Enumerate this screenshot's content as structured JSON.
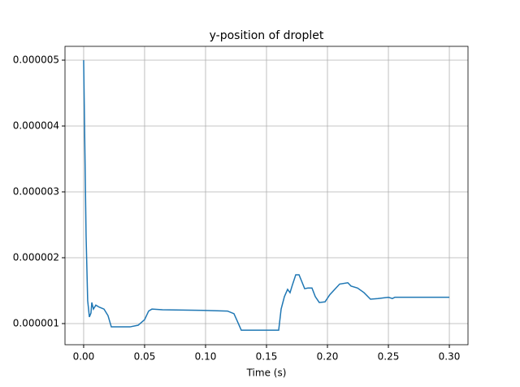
{
  "chart_data": {
    "type": "line",
    "title": "y-position of droplet",
    "xlabel": "Time (s)",
    "x": [
      0,
      0.0007,
      0.002,
      0.0033,
      0.0047,
      0.006,
      0.0067,
      0.008,
      0.01,
      0.0127,
      0.0167,
      0.02,
      0.0227,
      0.026,
      0.038,
      0.0447,
      0.05,
      0.0533,
      0.056,
      0.0647,
      0.098,
      0.118,
      0.1233,
      0.126,
      0.1293,
      0.138,
      0.16,
      0.162,
      0.1647,
      0.1673,
      0.1693,
      0.1713,
      0.174,
      0.1767,
      0.1787,
      0.1813,
      0.184,
      0.1873,
      0.19,
      0.1933,
      0.198,
      0.202,
      0.206,
      0.21,
      0.2167,
      0.2193,
      0.2247,
      0.23,
      0.2353,
      0.2413,
      0.25,
      0.2533,
      0.2553,
      0.3
    ],
    "series": [
      {
        "name": "y",
        "color": "#1f77b4",
        "values": [
          5e-06,
          4.06e-06,
          2.33e-06,
          1.35e-06,
          1.1e-06,
          1.16e-06,
          1.32e-06,
          1.22e-06,
          1.28e-06,
          1.25e-06,
          1.22e-06,
          1.12e-06,
          9.5e-07,
          9.5e-07,
          9.5e-07,
          9.75e-07,
          1.06e-06,
          1.19e-06,
          1.22e-06,
          1.21e-06,
          1.2e-06,
          1.19e-06,
          1.15e-06,
          1.04e-06,
          9e-07,
          9e-07,
          9e-07,
          1.22e-06,
          1.41e-06,
          1.52e-06,
          1.47e-06,
          1.59e-06,
          1.74e-06,
          1.74e-06,
          1.65e-06,
          1.53e-06,
          1.54e-06,
          1.54e-06,
          1.41e-06,
          1.32e-06,
          1.33e-06,
          1.44e-06,
          1.52e-06,
          1.6e-06,
          1.62e-06,
          1.57e-06,
          1.54e-06,
          1.47e-06,
          1.37e-06,
          1.38e-06,
          1.4e-06,
          1.38e-06,
          1.4e-06,
          1.4e-06
        ]
      }
    ],
    "xlim": [
      -0.0153,
      0.3153
    ],
    "xticks": [
      {
        "value": 0,
        "label": "0.00"
      },
      {
        "value": 0.05,
        "label": "0.05"
      },
      {
        "value": 0.1,
        "label": "0.10"
      },
      {
        "value": 0.15,
        "label": "0.15"
      },
      {
        "value": 0.2,
        "label": "0.20"
      },
      {
        "value": 0.25,
        "label": "0.25"
      },
      {
        "value": 0.3,
        "label": "0.30"
      }
    ],
    "ylim": [
      6.79e-07,
      5.21e-06
    ],
    "yticks": [
      1e-06,
      2e-06,
      3e-06,
      4e-06,
      5e-06
    ],
    "grid": true
  }
}
